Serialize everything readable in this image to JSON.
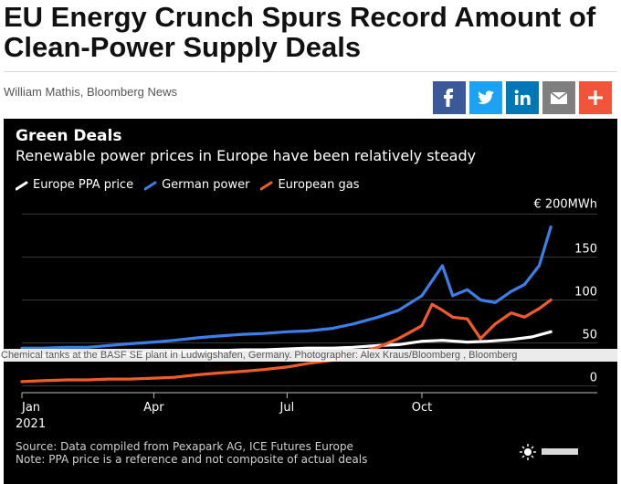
{
  "article": {
    "headline": "EU Energy Crunch Spurs Record Amount of Clean-Power Supply Deals",
    "byline": "William Mathis, Bloomberg News"
  },
  "share_buttons": [
    {
      "name": "facebook-share-button",
      "icon": "facebook-icon",
      "color": "#3b5998"
    },
    {
      "name": "twitter-share-button",
      "icon": "twitter-icon",
      "color": "#1da1f2"
    },
    {
      "name": "linkedin-share-button",
      "icon": "linkedin-icon",
      "color": "#0077b5"
    },
    {
      "name": "email-share-button",
      "icon": "mail-icon",
      "color": "#7f7f7f"
    },
    {
      "name": "more-share-button",
      "icon": "plus-icon",
      "color": "#f0553a"
    }
  ],
  "chart_data": {
    "type": "line",
    "title": "Green Deals",
    "subtitle": "Renewable power prices in Europe have been relatively steady",
    "unit_label": "€ 200MWh",
    "x_tick_labels": [
      "Jan",
      "Apr",
      "Jul",
      "Oct"
    ],
    "x_tick_sublabel": "2021",
    "x_ticks": [
      "2021-01-01",
      "2021-04-01",
      "2021-07-01",
      "2021-10-01"
    ],
    "xlim": [
      "2021-01-01",
      "2021-12-31"
    ],
    "ylim": [
      -10,
      210
    ],
    "y_ticks": [
      0,
      50,
      100,
      150,
      200
    ],
    "y_tick_labels": [
      "0",
      "50",
      "100",
      "150",
      ""
    ],
    "grid": "horizontal",
    "legend_position": "top-left",
    "series": [
      {
        "name": "Europe PPA price",
        "color": "#ffffff",
        "x": [
          "2021-01-01",
          "2021-01-15",
          "2021-02-01",
          "2021-02-15",
          "2021-03-01",
          "2021-03-15",
          "2021-04-01",
          "2021-04-15",
          "2021-05-01",
          "2021-05-15",
          "2021-06-01",
          "2021-06-15",
          "2021-07-01",
          "2021-07-15",
          "2021-08-01",
          "2021-08-15",
          "2021-09-01",
          "2021-09-15",
          "2021-10-01",
          "2021-10-15",
          "2021-11-01",
          "2021-11-15",
          "2021-12-01",
          "2021-12-15",
          "2021-12-28"
        ],
        "values": [
          34,
          35,
          35,
          36,
          36,
          37,
          38,
          39,
          40,
          41,
          42,
          42,
          43,
          44,
          44,
          45,
          47,
          48,
          52,
          53,
          51,
          52,
          54,
          57,
          63
        ]
      },
      {
        "name": "German power",
        "color": "#3d7fe8",
        "x": [
          "2021-01-01",
          "2021-01-15",
          "2021-02-01",
          "2021-02-15",
          "2021-03-01",
          "2021-03-15",
          "2021-04-01",
          "2021-04-15",
          "2021-05-01",
          "2021-05-15",
          "2021-06-01",
          "2021-06-15",
          "2021-07-01",
          "2021-07-15",
          "2021-08-01",
          "2021-08-15",
          "2021-09-01",
          "2021-09-15",
          "2021-10-01",
          "2021-10-15",
          "2021-10-22",
          "2021-11-01",
          "2021-11-10",
          "2021-11-20",
          "2021-12-01",
          "2021-12-10",
          "2021-12-20",
          "2021-12-28"
        ],
        "values": [
          44,
          44,
          45,
          45,
          47,
          49,
          51,
          53,
          56,
          58,
          60,
          61,
          63,
          64,
          67,
          72,
          80,
          88,
          105,
          140,
          105,
          112,
          100,
          97,
          110,
          118,
          140,
          185
        ]
      },
      {
        "name": "European gas",
        "color": "#f15a29",
        "x": [
          "2021-01-01",
          "2021-01-15",
          "2021-02-01",
          "2021-02-15",
          "2021-03-01",
          "2021-03-15",
          "2021-04-01",
          "2021-04-15",
          "2021-05-01",
          "2021-05-15",
          "2021-06-01",
          "2021-06-15",
          "2021-07-01",
          "2021-07-15",
          "2021-08-01",
          "2021-08-15",
          "2021-09-01",
          "2021-09-15",
          "2021-10-01",
          "2021-10-08",
          "2021-10-15",
          "2021-10-22",
          "2021-11-01",
          "2021-11-10",
          "2021-11-20",
          "2021-12-01",
          "2021-12-10",
          "2021-12-20",
          "2021-12-28"
        ],
        "values": [
          5,
          6,
          7,
          7,
          8,
          8,
          9,
          10,
          13,
          15,
          17,
          19,
          22,
          26,
          30,
          37,
          45,
          55,
          70,
          95,
          88,
          80,
          78,
          55,
          72,
          85,
          80,
          90,
          100
        ]
      }
    ],
    "source": "Source: Data compiled from Pexapark AG, ICE Futures Europe",
    "note": "Note: PPA price is a reference and not composite of actual deals"
  },
  "photo_caption": "Chemical tanks at the BASF SE plant in Ludwigshafen, Germany. Photographer: Alex Kraus/Bloomberg , Bloomberg"
}
